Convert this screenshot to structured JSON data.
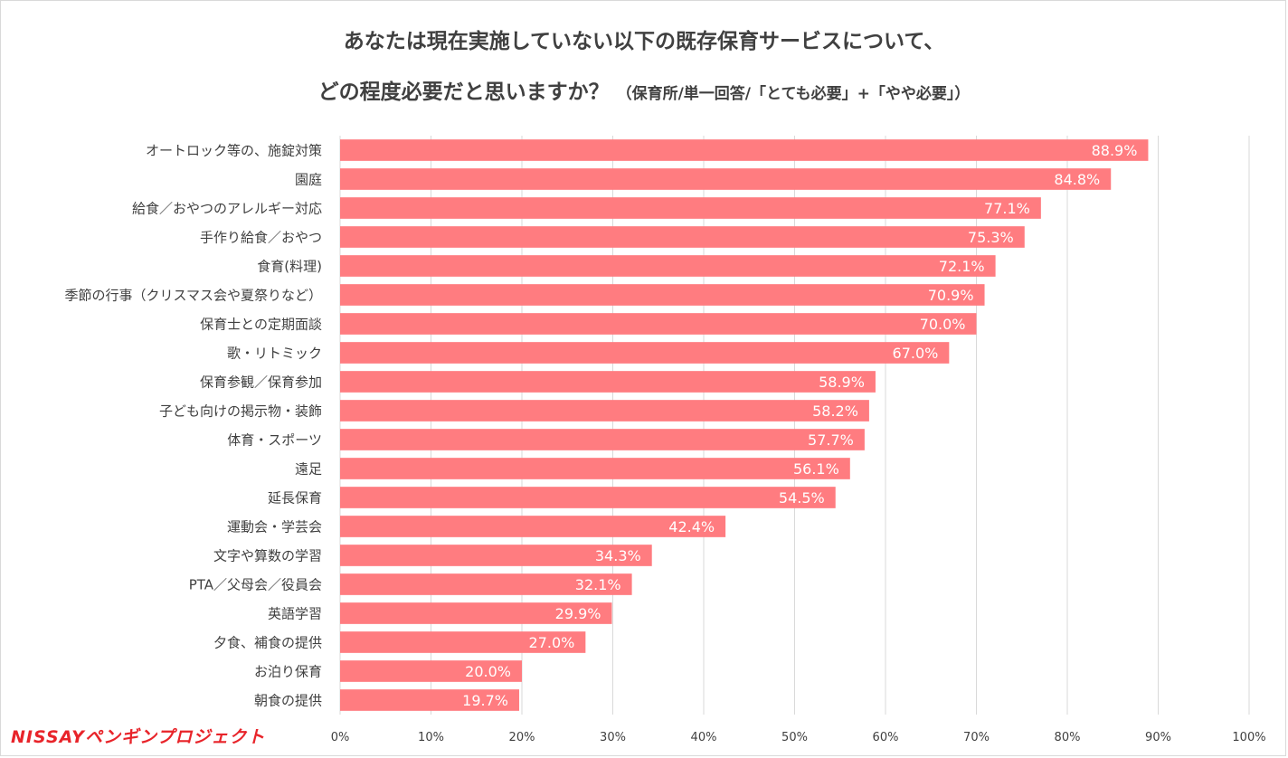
{
  "header": {
    "title_line1": "あなたは現在実施していない以下の既存保育サービスについて、",
    "title_line2": "どの程度必要だと思いますか？",
    "title_sub": "（保育所/単一回答/「とても必要」+「やや必要」）"
  },
  "logo": {
    "text": "NISSAYペンギンプロジェクト"
  },
  "colors": {
    "bar": "#ff7c80",
    "grid": "#d9d9d9",
    "text": "#404040",
    "label": "#ffffff",
    "logo": "#e8242a"
  },
  "chart_data": {
    "type": "bar",
    "orientation": "horizontal",
    "title": "あなたは現在実施していない以下の既存保育サービスについて、どの程度必要だと思いますか？（保育所/単一回答/「とても必要」+「やや必要」）",
    "categories": [
      "オートロック等の、施錠対策",
      "園庭",
      "給食／おやつのアレルギー対応",
      "手作り給食／おやつ",
      "食育(料理)",
      "季節の行事（クリスマス会や夏祭りなど）",
      "保育士との定期面談",
      "歌・リトミック",
      "保育参観／保育参加",
      "子ども向けの掲示物・装飾",
      "体育・スポーツ",
      "遠足",
      "延長保育",
      "運動会・学芸会",
      "文字や算数の学習",
      "PTA／父母会／役員会",
      "英語学習",
      "夕食、補食の提供",
      "お泊り保育",
      "朝食の提供"
    ],
    "values": [
      88.9,
      84.8,
      77.1,
      75.3,
      72.1,
      70.9,
      70.0,
      67.0,
      58.9,
      58.2,
      57.7,
      56.1,
      54.5,
      42.4,
      34.3,
      32.1,
      29.9,
      27.0,
      20.0,
      19.7
    ],
    "value_labels": [
      "88.9%",
      "84.8%",
      "77.1%",
      "75.3%",
      "72.1%",
      "70.9%",
      "70.0%",
      "67.0%",
      "58.9%",
      "58.2%",
      "57.7%",
      "56.1%",
      "54.5%",
      "42.4%",
      "34.3%",
      "32.1%",
      "29.9%",
      "27.0%",
      "20.0%",
      "19.7%"
    ],
    "xlim": [
      0,
      100
    ],
    "x_ticks": [
      "0%",
      "10%",
      "20%",
      "30%",
      "40%",
      "50%",
      "60%",
      "70%",
      "80%",
      "90%",
      "100%"
    ],
    "grid": true,
    "legend": "none"
  }
}
